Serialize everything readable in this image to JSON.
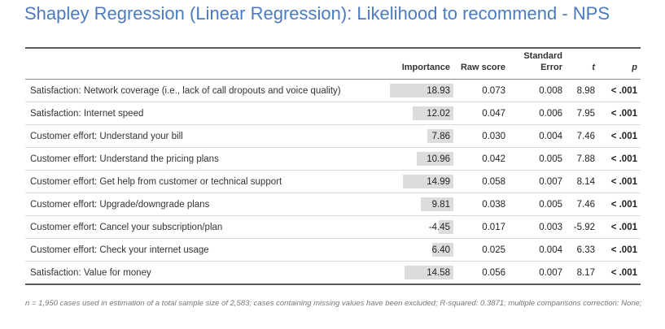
{
  "title": "Shapley Regression (Linear Regression): Likelihood to recommend - NPS",
  "columns": {
    "importance": "Importance",
    "raw_score": "Raw score",
    "std_error_1": "Standard",
    "std_error_2": "Error",
    "t": "t",
    "p": "p"
  },
  "rows": [
    {
      "label": "Satisfaction: Network coverage (i.e., lack of call dropouts and voice quality)",
      "importance": "18.93",
      "importance_value": 18.93,
      "raw": "0.073",
      "se": "0.008",
      "t": "8.98",
      "p": "< .001"
    },
    {
      "label": "Satisfaction: Internet speed",
      "importance": "12.02",
      "importance_value": 12.02,
      "raw": "0.047",
      "se": "0.006",
      "t": "7.95",
      "p": "< .001"
    },
    {
      "label": "Customer effort: Understand your bill",
      "importance": "7.86",
      "importance_value": 7.86,
      "raw": "0.030",
      "se": "0.004",
      "t": "7.46",
      "p": "< .001"
    },
    {
      "label": "Customer effort: Understand the pricing plans",
      "importance": "10.96",
      "importance_value": 10.96,
      "raw": "0.042",
      "se": "0.005",
      "t": "7.88",
      "p": "< .001"
    },
    {
      "label": "Customer effort: Get help from customer or technical support",
      "importance": "14.99",
      "importance_value": 14.99,
      "raw": "0.058",
      "se": "0.007",
      "t": "8.14",
      "p": "< .001"
    },
    {
      "label": "Customer effort: Upgrade/downgrade plans",
      "importance": "9.81",
      "importance_value": 9.81,
      "raw": "0.038",
      "se": "0.005",
      "t": "7.46",
      "p": "< .001"
    },
    {
      "label": "Customer effort: Cancel your subscription/plan",
      "importance": "-4.45",
      "importance_value": -4.45,
      "raw": "0.017",
      "se": "0.003",
      "t": "-5.92",
      "p": "< .001"
    },
    {
      "label": "Customer effort: Check your internet usage",
      "importance": "6.40",
      "importance_value": 6.4,
      "raw": "0.025",
      "se": "0.004",
      "t": "6.33",
      "p": "< .001"
    },
    {
      "label": "Satisfaction: Value for money",
      "importance": "14.58",
      "importance_value": 14.58,
      "raw": "0.056",
      "se": "0.007",
      "t": "8.17",
      "p": "< .001"
    }
  ],
  "footnote": "n = 1,950 cases used in estimation of a total sample size of 2,583; cases containing missing values have been excluded; R-squared: 0.3871; multiple comparisons correction: None;",
  "colors": {
    "title": "#4a7bc0",
    "bar": "#dcdcdc"
  }
}
